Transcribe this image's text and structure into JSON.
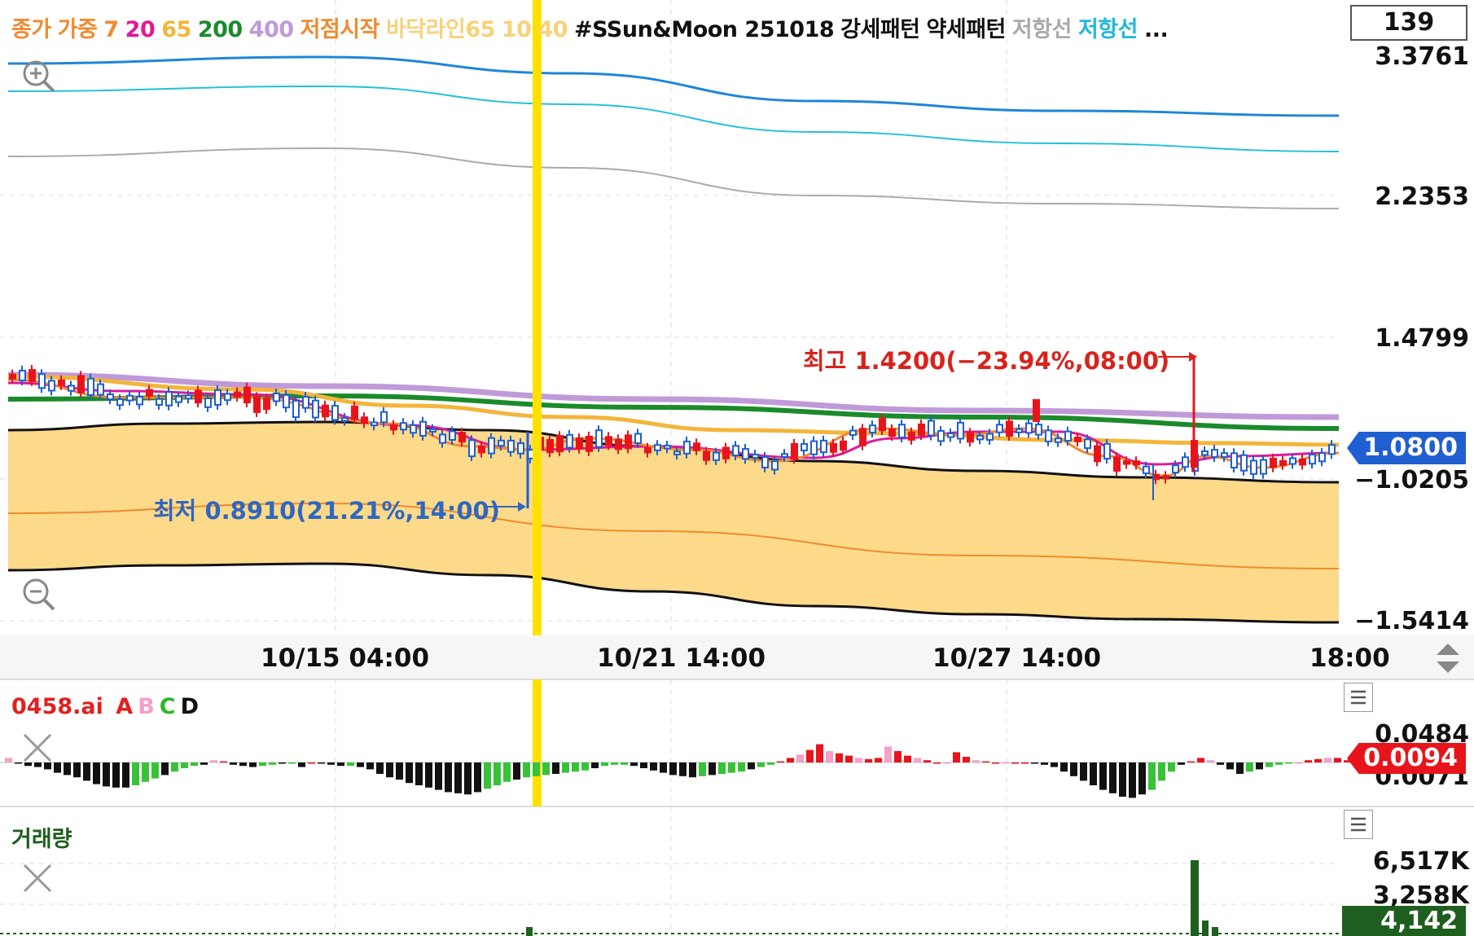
{
  "legend": {
    "items": [
      {
        "text": "종가",
        "color": "#f08a2e"
      },
      {
        "text": "가중",
        "color": "#f08a2e"
      },
      {
        "text": "7",
        "color": "#f08a2e"
      },
      {
        "text": "20",
        "color": "#e0189a"
      },
      {
        "text": "65",
        "color": "#f3b53b"
      },
      {
        "text": "200",
        "color": "#1a8a2a"
      },
      {
        "text": "400",
        "color": "#c09ad8"
      },
      {
        "text": "저점시작",
        "color": "#f08a2e"
      },
      {
        "text": "바닥라인65",
        "color": "#f7d27a"
      },
      {
        "text": "10",
        "color": "#f7d27a"
      },
      {
        "text": "40",
        "color": "#f7d27a"
      },
      {
        "text": "#SSun&Moon 251018",
        "color": "#111111"
      },
      {
        "text": "강세패턴",
        "color": "#111111"
      },
      {
        "text": "약세패턴",
        "color": "#111111"
      },
      {
        "text": "저항선",
        "color": "#aaaaaa"
      },
      {
        "text": "저항선",
        "color": "#22b8d8"
      },
      {
        "text": "...",
        "color": "#111111"
      }
    ]
  },
  "top_box_value": "139",
  "price_axis": {
    "labels": [
      "3.3761",
      "2.2353",
      "1.4799",
      "−1.0205",
      "−1.5414"
    ],
    "current_price": "1.0800",
    "current_price_color": "#1f5fd0"
  },
  "time_axis": {
    "labels": [
      "10/15 04:00",
      "10/21 14:00",
      "10/27 14:00",
      "18:00"
    ]
  },
  "annotations": {
    "high": "최고 1.4200(−23.94%,08:00)",
    "low": "최저 0.8910(21.21%,14:00)"
  },
  "indicator1": {
    "name": "0458.ai",
    "labels": [
      {
        "text": "A",
        "color": "#e02020"
      },
      {
        "text": "B",
        "color": "#f4a0c8"
      },
      {
        "text": "C",
        "color": "#2ab82a"
      },
      {
        "text": "D",
        "color": "#111111"
      }
    ],
    "axis_top": "0.0484",
    "axis_bottom": "0.0071",
    "current_value": "0.0094",
    "current_value_color": "#e8141c"
  },
  "indicator2": {
    "name": "거래량",
    "axis_top": "6,517K",
    "axis_mid": "3,258K",
    "current_value": "4,142",
    "current_value_color": "#1e5e1e"
  },
  "colors": {
    "up": "#e8141c",
    "down": "#1f5fd0",
    "highlight_bar": "#ffe100",
    "band_fill": "#fdd98a"
  },
  "chart_data": {
    "type": "candlestick",
    "high_label": "최고 1.4200(−23.94%,08:00)",
    "low_label": "최저 0.8910(21.21%,14:00)",
    "current_price": 1.08,
    "oscillator": [
      0.004,
      -0.001,
      -0.003,
      -0.004,
      -0.006,
      -0.009,
      -0.011,
      -0.013,
      -0.016,
      -0.019,
      -0.021,
      -0.022,
      -0.022,
      -0.02,
      -0.017,
      -0.014,
      -0.011,
      -0.008,
      -0.005,
      -0.003,
      -0.002,
      0.002,
      0.001,
      -0.002,
      -0.003,
      -0.004,
      -0.003,
      -0.002,
      -0.001,
      -0.001,
      -0.004,
      0.0,
      -0.001,
      -0.002,
      -0.003,
      -0.003,
      -0.004,
      -0.006,
      -0.01,
      -0.013,
      -0.015,
      -0.018,
      -0.02,
      -0.022,
      -0.024,
      -0.026,
      -0.027,
      -0.028,
      -0.026,
      -0.023,
      -0.02,
      -0.017,
      -0.015,
      -0.013,
      -0.012,
      -0.011,
      -0.01,
      -0.009,
      -0.008,
      -0.007,
      -0.005,
      -0.003,
      -0.002,
      -0.002,
      -0.003,
      -0.005,
      -0.007,
      -0.009,
      -0.011,
      -0.012,
      -0.013,
      -0.012,
      -0.011,
      -0.01,
      -0.009,
      -0.008,
      -0.006,
      -0.004,
      -0.002,
      0.001,
      0.004,
      0.007,
      0.011,
      0.016,
      0.01,
      0.008,
      0.006,
      0.004,
      0.003,
      0.004,
      0.014,
      0.01,
      0.006,
      0.004,
      0.002,
      0.0,
      0.0,
      0.009,
      0.005,
      0.002,
      0.001,
      0.0,
      0.0,
      0.0,
      0.0,
      -0.001,
      -0.002,
      -0.004,
      -0.008,
      -0.012,
      -0.016,
      -0.02,
      -0.024,
      -0.027,
      -0.03,
      -0.031,
      -0.028,
      -0.024,
      -0.016,
      -0.008,
      -0.002,
      0.001,
      0.004,
      0.002,
      -0.002,
      -0.006,
      -0.01,
      -0.008,
      -0.006,
      -0.004,
      -0.002,
      -0.001,
      0.0,
      0.002,
      0.003,
      0.004,
      0.004,
      0.002
    ],
    "volume_spike": "6,517K"
  }
}
